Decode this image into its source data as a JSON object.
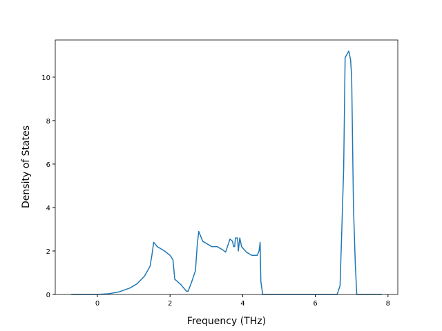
{
  "chart_data": {
    "type": "line",
    "x_label": "Frequency (THz)",
    "y_label": "Density of States",
    "x": [
      -0.72,
      0,
      0.3,
      0.6,
      0.9,
      1.1,
      1.3,
      1.45,
      1.5,
      1.55,
      1.65,
      1.85,
      2.0,
      2.08,
      2.13,
      2.3,
      2.45,
      2.5,
      2.6,
      2.7,
      2.75,
      2.79,
      2.9,
      3.0,
      3.15,
      3.3,
      3.45,
      3.53,
      3.6,
      3.65,
      3.72,
      3.75,
      3.78,
      3.8,
      3.86,
      3.88,
      3.92,
      3.97,
      4.1,
      4.25,
      4.4,
      4.45,
      4.48,
      4.5,
      4.55,
      6.6,
      6.68,
      6.72,
      6.78,
      6.82,
      6.92,
      6.97,
      7.0,
      7.05,
      7.1,
      7.14,
      7.83
    ],
    "series": [
      {
        "color": "#1f77b4",
        "values": [
          0,
          0,
          0.03,
          0.12,
          0.3,
          0.5,
          0.85,
          1.3,
          1.8,
          2.4,
          2.2,
          2.0,
          1.8,
          1.6,
          0.7,
          0.45,
          0.15,
          0.15,
          0.6,
          1.1,
          2.3,
          2.9,
          2.45,
          2.35,
          2.2,
          2.2,
          2.05,
          1.95,
          2.3,
          2.55,
          2.45,
          2.2,
          2.2,
          2.6,
          2.6,
          2.0,
          2.6,
          2.2,
          1.95,
          1.8,
          1.8,
          2.0,
          2.4,
          0.6,
          0,
          0,
          0.4,
          2.5,
          5.8,
          10.9,
          11.2,
          10.8,
          10.0,
          4.0,
          1.4,
          0,
          0
        ]
      }
    ],
    "xlim": [
      -1.16,
      8.27
    ],
    "ylim": [
      0,
      11.71
    ],
    "xticks": [
      0,
      2,
      4,
      6,
      8
    ],
    "yticks": [
      0,
      2,
      4,
      6,
      8,
      10
    ]
  }
}
